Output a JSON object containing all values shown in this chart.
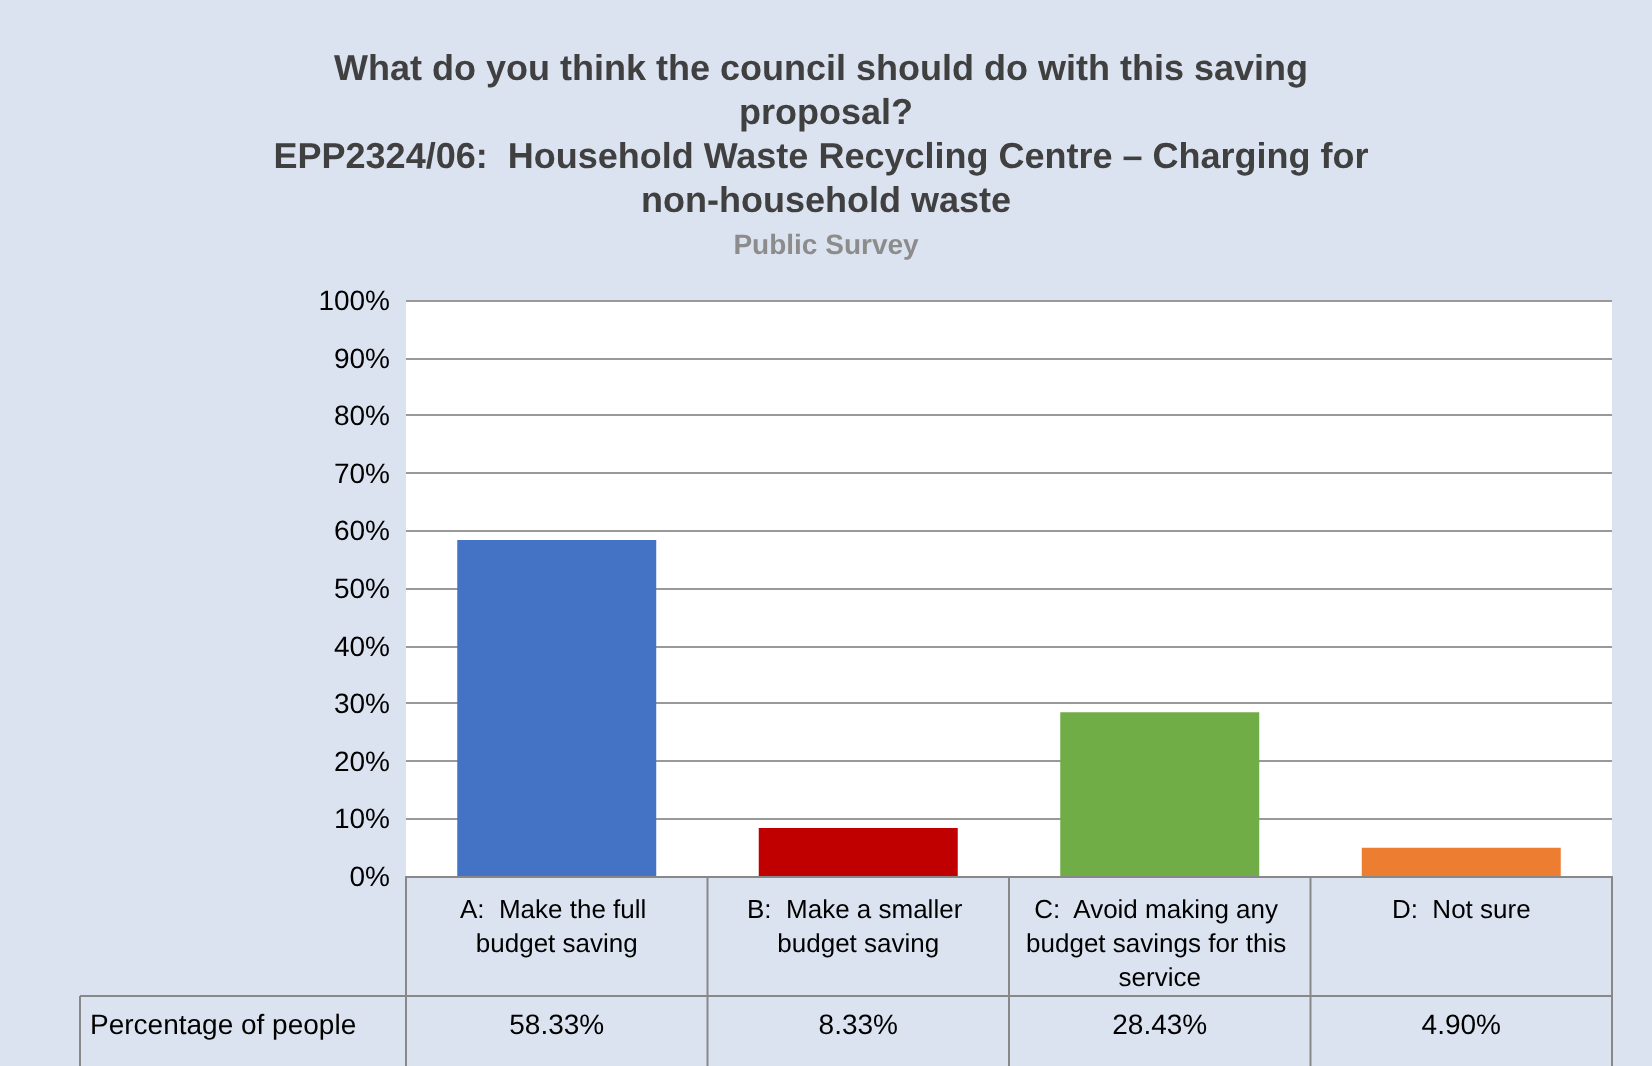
{
  "chart_data": {
    "type": "bar",
    "title": "What do you think the council should do with this saving proposal?\nEPP2324/06:  Household Waste Recycling Centre – Charging for non-household waste",
    "subtitle": "Public Survey",
    "categories": [
      "A:  Make the full budget saving",
      "B:  Make a smaller budget saving",
      "C:  Avoid making any budget savings for this service",
      "D:  Not sure"
    ],
    "series": [
      {
        "name": "Percentage of people",
        "colors": [
          "#4472c4",
          "#c00000",
          "#70ad47",
          "#ed7d31"
        ],
        "values": [
          58.33,
          8.33,
          28.43,
          4.9
        ],
        "value_labels": [
          "58.33%",
          "8.33%",
          "28.43%",
          "4.90%"
        ]
      }
    ],
    "ylim": [
      0,
      100
    ],
    "yticks": [
      {
        "value": 0,
        "label": "0%"
      },
      {
        "value": 10,
        "label": "10%"
      },
      {
        "value": 20,
        "label": "20%"
      },
      {
        "value": 30,
        "label": "30%"
      },
      {
        "value": 40,
        "label": "40%"
      },
      {
        "value": 50,
        "label": "50%"
      },
      {
        "value": 60,
        "label": "60%"
      },
      {
        "value": 70,
        "label": "70%"
      },
      {
        "value": 80,
        "label": "80%"
      },
      {
        "value": 90,
        "label": "90%"
      },
      {
        "value": 100,
        "label": "100%"
      }
    ],
    "grid": "y",
    "legend": false
  }
}
